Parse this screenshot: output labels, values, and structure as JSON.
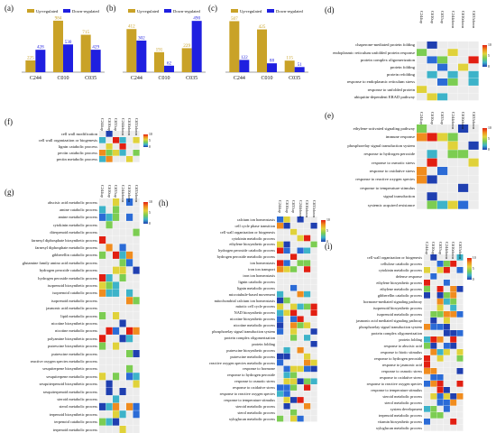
{
  "panels": {
    "a": {
      "label": "(a)"
    },
    "b": {
      "label": "(b)"
    },
    "c": {
      "label": "(c)"
    },
    "d": {
      "label": "(d)"
    },
    "e": {
      "label": "(e)"
    },
    "f": {
      "label": "(f)"
    },
    "g": {
      "label": "(g)"
    },
    "h": {
      "label": "(h)"
    },
    "i": {
      "label": "(i)"
    }
  },
  "colors": {
    "up": "#c9a227",
    "down": "#1f1fe0",
    "label_up": "#c9a227",
    "label_down": "#1f1fe0"
  },
  "legend": {
    "up": "Up-regulated",
    "down": "Down-regulated"
  },
  "heat_columns_6": [
    "C244up",
    "C010up",
    "C035up",
    "C244down",
    "C010down",
    "C035down"
  ],
  "chart_data": [
    {
      "panel": "a",
      "type": "bar",
      "categories": [
        "C244",
        "C010",
        "C035"
      ],
      "series": [
        {
          "name": "Up-regulated",
          "values": [
            225,
            984,
            715
          ]
        },
        {
          "name": "Down-regulated",
          "values": [
            428,
            530,
            429
          ]
        }
      ],
      "ylim": [
        0,
        1000
      ]
    },
    {
      "panel": "b",
      "type": "bar",
      "categories": [
        "C244",
        "C010",
        "C035"
      ],
      "series": [
        {
          "name": "Up-regulated",
          "values": [
            412,
            191,
            229
          ]
        },
        {
          "name": "Down-regulated",
          "values": [
            302,
            62,
            490
          ]
        }
      ],
      "ylim": [
        0,
        500
      ]
    },
    {
      "panel": "c",
      "type": "bar",
      "categories": [
        "C244",
        "C010",
        "C035"
      ],
      "series": [
        {
          "name": "Up-regulated",
          "values": [
            507,
            425,
            115
          ]
        },
        {
          "name": "Down-regulated",
          "values": [
            122,
            88,
            51
          ]
        }
      ],
      "ylim": [
        0,
        520
      ]
    },
    {
      "panel": "d",
      "type": "heatmap",
      "rows": [
        "chaperone-mediated protein folding",
        "endoplasmic reticulum unfolded protein response",
        "protein complex oligomerization",
        "protein folding",
        "protein refolding",
        "response to endoplasmic reticulum stress",
        "response to unfolded protein",
        "ubiquitin-dependent ERAD pathway"
      ],
      "scale": [
        0,
        5,
        10
      ]
    },
    {
      "panel": "e",
      "type": "heatmap",
      "rows": [
        "ethylene-activated signaling pathway",
        "immune response",
        "phosphorelay signal transduction system",
        "response to hydrogen peroxide",
        "response to osmotic stress",
        "response to oxidative stress",
        "response to reactive oxygen species",
        "response to temperature stimulus",
        "signal transduction",
        "systemic acquired resistance"
      ],
      "scale": [
        0,
        5,
        10
      ]
    },
    {
      "panel": "f",
      "type": "heatmap",
      "rows": [
        "cell wall modification",
        "cell wall organization or biogenesis",
        "lignin catabolic process",
        "pectin catabolic process",
        "pectin metabolic process"
      ],
      "scale": [
        0,
        5,
        10
      ]
    },
    {
      "panel": "g",
      "type": "heatmap",
      "rows": [
        "abscisic acid metabolic process",
        "amine catabolic process",
        "amine metabolic process",
        "cytokinin metabolic process",
        "diterpenoid metabolic process",
        "farnesyl diphosphate biosynthetic process",
        "farnesyl diphosphate metabolic process",
        "gibberellin catabolic process",
        "glutamine family amino acid metabolic process",
        "hydrogen peroxide catabolic process",
        "hydrogen peroxide metabolic process",
        "isoprenoid biosynthetic process",
        "isoprenoid catabolic process",
        "isoprenoid metabolic process",
        "jasmonic acid metabolic process",
        "lipid metabolic process",
        "nicotine biosynthetic process",
        "nicotine metabolic process",
        "polyamine biosynthetic process",
        "putrescine biosynthetic process",
        "putrescine metabolic process",
        "reactive oxygen species metabolic process",
        "sesquiterpene biosynthetic process",
        "sesquiterpene metabolic process",
        "sesquiterpenoid biosynthetic process",
        "sesquiterpenoid metabolic process",
        "steroid metabolic process",
        "sterol metabolic process",
        "terpenoid biosynthetic process",
        "terpenoid catabolic process",
        "terpenoid metabolic process"
      ],
      "scale": [
        0,
        5,
        10
      ]
    },
    {
      "panel": "h",
      "type": "heatmap",
      "rows": [
        "calcium ion homeostasis",
        "cell cycle phase transition",
        "cell wall organization or biogenesis",
        "cytokinin metabolic process",
        "ethylene biosynthetic process",
        "hydrogen peroxide catabolic process",
        "hydrogen peroxide metabolic process",
        "ion homeostasis",
        "iron ion transport",
        "iron ion homeostasis",
        "lignin catabolic process",
        "lignin metabolic process",
        "microtubule-based movement",
        "mitochondrial calcium ion homeostasis",
        "mitotic cell cycle process",
        "NAD biosynthetic process",
        "nicotine biosynthetic process",
        "nicotine metabolic process",
        "phosphorelay signal transduction system",
        "protein complex oligomerization",
        "protein folding",
        "putrescine biosynthetic process",
        "putrescine metabolic process",
        "reactive oxygen species metabolic process",
        "response to hormone",
        "response to hydrogen peroxide",
        "response to osmotic stress",
        "response to oxidative stress",
        "response to reactive oxygen species",
        "response to temperature stimulus",
        "steroid metabolic process",
        "sterol metabolic process",
        "xyloglucan metabolic process"
      ],
      "scale": [
        0,
        5,
        10
      ]
    },
    {
      "panel": "i",
      "type": "heatmap",
      "rows": [
        "cell wall organization or biogenesis",
        "cellulose catabolic process",
        "cytokinin metabolic process",
        "defense response",
        "ethylene biosynthetic process",
        "ethylene metabolic process",
        "gibberellin catabolic process",
        "hormone-mediated signaling pathway",
        "isoprenoid biosynthetic process",
        "isoprenoid metabolic process",
        "jasmonic acid mediated signaling pathway",
        "phosphorelay signal transduction system",
        "protein complex oligomerization",
        "protein folding",
        "response to abscisic acid",
        "response to biotic stimulus",
        "response to hydrogen peroxide",
        "response to jasmonic acid",
        "response to osmotic stress",
        "response to oxidative stress",
        "response to reactive oxygen species",
        "response to temperature stimulus",
        "steroid metabolic process",
        "sterol metabolic process",
        "system development",
        "terpenoid metabolic process",
        "vitamin biosynthetic process",
        "xyloglucan metabolic process"
      ],
      "scale": [
        0,
        5,
        10
      ]
    }
  ]
}
